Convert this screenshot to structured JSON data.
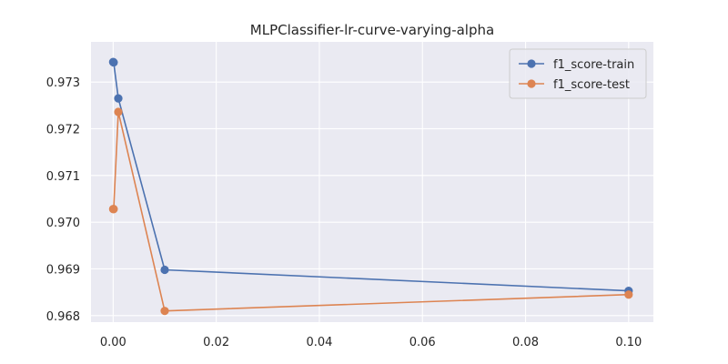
{
  "chart_data": {
    "type": "line",
    "title": "MLPClassifier-lr-curve-varying-alpha",
    "xlabel": "",
    "ylabel": "",
    "xlim": [
      -0.0043,
      0.1048
    ],
    "ylim": [
      0.96786,
      0.97386
    ],
    "x_ticks": [
      0.0,
      0.02,
      0.04,
      0.06,
      0.08,
      0.1
    ],
    "x_tick_labels": [
      "0.00",
      "0.02",
      "0.04",
      "0.06",
      "0.08",
      "0.10"
    ],
    "y_ticks": [
      0.968,
      0.969,
      0.97,
      0.971,
      0.972,
      0.973
    ],
    "y_tick_labels": [
      "0.968",
      "0.969",
      "0.970",
      "0.971",
      "0.972",
      "0.973"
    ],
    "grid": true,
    "legend_position": "top-right",
    "series": [
      {
        "name": "f1_score-train",
        "color": "#4c72b0",
        "marker": "circle",
        "x": [
          0.0,
          0.0001,
          0.001,
          0.01,
          0.1
        ],
        "y": [
          0.97343,
          0.97342,
          0.97265,
          0.96898,
          0.96853
        ]
      },
      {
        "name": "f1_score-test",
        "color": "#dd8452",
        "marker": "circle",
        "x": [
          0.0,
          0.0001,
          0.001,
          0.01,
          0.1
        ],
        "y": [
          0.97028,
          0.97028,
          0.97236,
          0.9681,
          0.96845
        ]
      }
    ]
  },
  "style": {
    "plot_background": "#eaeaf2",
    "grid_color": "#ffffff",
    "text_color": "#262626"
  }
}
